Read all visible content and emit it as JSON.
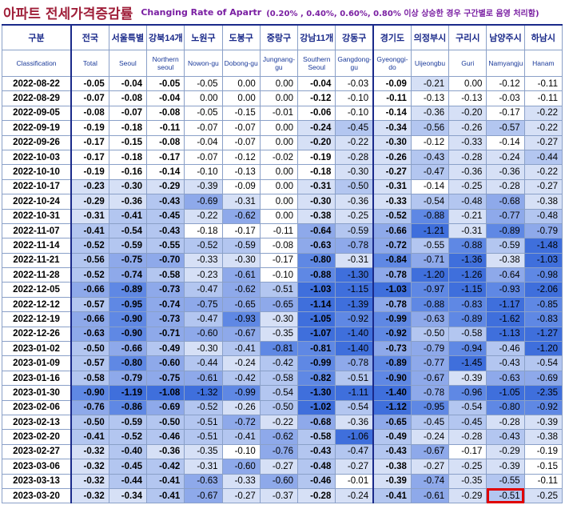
{
  "header": {
    "title": "아파트 전세가격증감률",
    "subtitle": "Changing Rate of Apartr",
    "note": "(0.20% , 0.40%, 0.60%, 0.80% 이상 상승한 경우 구간별로 음영 처리함)"
  },
  "table": {
    "columns": [
      {
        "ko": "구분",
        "en": "Classification"
      },
      {
        "ko": "전국",
        "en": "Total"
      },
      {
        "ko": "서울특별",
        "en": "Seoul"
      },
      {
        "ko": "강북14개",
        "en": "Northern seoul"
      },
      {
        "ko": "노원구",
        "en": "Nowon-gu"
      },
      {
        "ko": "도봉구",
        "en": "Dobong-gu"
      },
      {
        "ko": "중랑구",
        "en": "Jungnang-gu"
      },
      {
        "ko": "강남11개",
        "en": "Southern Seoul"
      },
      {
        "ko": "강동구",
        "en": "Gangdong-gu"
      },
      {
        "ko": "경기도",
        "en": "Gyeonggi-do"
      },
      {
        "ko": "의정부시",
        "en": "Uijeongbu"
      },
      {
        "ko": "구리시",
        "en": "Guri"
      },
      {
        "ko": "남양주시",
        "en": "Namyangju"
      },
      {
        "ko": "하남시",
        "en": "Hanam"
      }
    ],
    "rows": [
      [
        "2022-08-22",
        "-0.05",
        "-0.04",
        "-0.05",
        "-0.05",
        "0.00",
        "0.00",
        "-0.04",
        "-0.03",
        "-0.09",
        "-0.21",
        "0.00",
        "-0.12",
        "-0.11"
      ],
      [
        "2022-08-29",
        "-0.07",
        "-0.08",
        "-0.04",
        "0.00",
        "0.00",
        "0.00",
        "-0.12",
        "-0.10",
        "-0.11",
        "-0.13",
        "-0.13",
        "-0.03",
        "-0.11"
      ],
      [
        "2022-09-05",
        "-0.08",
        "-0.07",
        "-0.08",
        "-0.05",
        "-0.15",
        "-0.01",
        "-0.06",
        "-0.10",
        "-0.14",
        "-0.36",
        "-0.20",
        "-0.17",
        "-0.22"
      ],
      [
        "2022-09-19",
        "-0.19",
        "-0.18",
        "-0.11",
        "-0.07",
        "-0.07",
        "0.00",
        "-0.24",
        "-0.45",
        "-0.34",
        "-0.56",
        "-0.26",
        "-0.57",
        "-0.22"
      ],
      [
        "2022-09-26",
        "-0.17",
        "-0.15",
        "-0.08",
        "-0.04",
        "-0.07",
        "0.00",
        "-0.20",
        "-0.22",
        "-0.30",
        "-0.12",
        "-0.33",
        "-0.14",
        "-0.27"
      ],
      [
        "2022-10-03",
        "-0.17",
        "-0.18",
        "-0.17",
        "-0.07",
        "-0.12",
        "-0.02",
        "-0.19",
        "-0.28",
        "-0.26",
        "-0.43",
        "-0.28",
        "-0.24",
        "-0.44"
      ],
      [
        "2022-10-10",
        "-0.19",
        "-0.16",
        "-0.14",
        "-0.10",
        "-0.13",
        "0.00",
        "-0.18",
        "-0.30",
        "-0.27",
        "-0.47",
        "-0.36",
        "-0.36",
        "-0.22"
      ],
      [
        "2022-10-17",
        "-0.23",
        "-0.30",
        "-0.29",
        "-0.39",
        "-0.09",
        "0.00",
        "-0.31",
        "-0.50",
        "-0.31",
        "-0.14",
        "-0.25",
        "-0.28",
        "-0.27"
      ],
      [
        "2022-10-24",
        "-0.29",
        "-0.36",
        "-0.43",
        "-0.69",
        "-0.31",
        "0.00",
        "-0.30",
        "-0.36",
        "-0.33",
        "-0.54",
        "-0.48",
        "-0.68",
        "-0.38"
      ],
      [
        "2022-10-31",
        "-0.31",
        "-0.41",
        "-0.45",
        "-0.22",
        "-0.62",
        "0.00",
        "-0.38",
        "-0.25",
        "-0.52",
        "-0.88",
        "-0.21",
        "-0.77",
        "-0.48"
      ],
      [
        "2022-11-07",
        "-0.41",
        "-0.54",
        "-0.43",
        "-0.18",
        "-0.17",
        "-0.11",
        "-0.64",
        "-0.59",
        "-0.66",
        "-1.21",
        "-0.31",
        "-0.89",
        "-0.79"
      ],
      [
        "2022-11-14",
        "-0.52",
        "-0.59",
        "-0.55",
        "-0.52",
        "-0.59",
        "-0.08",
        "-0.63",
        "-0.78",
        "-0.72",
        "-0.55",
        "-0.88",
        "-0.59",
        "-1.48"
      ],
      [
        "2022-11-21",
        "-0.56",
        "-0.75",
        "-0.70",
        "-0.33",
        "-0.30",
        "-0.17",
        "-0.80",
        "-0.31",
        "-0.84",
        "-0.71",
        "-1.36",
        "-0.38",
        "-1.03"
      ],
      [
        "2022-11-28",
        "-0.52",
        "-0.74",
        "-0.58",
        "-0.23",
        "-0.61",
        "-0.10",
        "-0.88",
        "-1.30",
        "-0.78",
        "-1.20",
        "-1.26",
        "-0.64",
        "-0.98"
      ],
      [
        "2022-12-05",
        "-0.66",
        "-0.89",
        "-0.73",
        "-0.47",
        "-0.62",
        "-0.51",
        "-1.03",
        "-1.15",
        "-1.03",
        "-0.97",
        "-1.15",
        "-0.93",
        "-2.06"
      ],
      [
        "2022-12-12",
        "-0.57",
        "-0.95",
        "-0.74",
        "-0.75",
        "-0.65",
        "-0.65",
        "-1.14",
        "-1.39",
        "-0.78",
        "-0.88",
        "-0.83",
        "-1.17",
        "-0.85"
      ],
      [
        "2022-12-19",
        "-0.66",
        "-0.90",
        "-0.73",
        "-0.47",
        "-0.93",
        "-0.30",
        "-1.05",
        "-0.92",
        "-0.99",
        "-0.63",
        "-0.89",
        "-1.62",
        "-0.83"
      ],
      [
        "2022-12-26",
        "-0.63",
        "-0.90",
        "-0.71",
        "-0.60",
        "-0.67",
        "-0.35",
        "-1.07",
        "-1.40",
        "-0.92",
        "-0.50",
        "-0.58",
        "-1.13",
        "-1.27"
      ],
      [
        "2023-01-02",
        "-0.50",
        "-0.66",
        "-0.49",
        "-0.30",
        "-0.41",
        "-0.81",
        "-0.81",
        "-1.40",
        "-0.73",
        "-0.79",
        "-0.94",
        "-0.46",
        "-1.20"
      ],
      [
        "2023-01-09",
        "-0.57",
        "-0.80",
        "-0.60",
        "-0.44",
        "-0.24",
        "-0.42",
        "-0.99",
        "-0.78",
        "-0.89",
        "-0.77",
        "-1.45",
        "-0.43",
        "-0.54"
      ],
      [
        "2023-01-16",
        "-0.58",
        "-0.79",
        "-0.75",
        "-0.61",
        "-0.42",
        "-0.58",
        "-0.82",
        "-0.51",
        "-0.90",
        "-0.67",
        "-0.39",
        "-0.63",
        "-0.69"
      ],
      [
        "2023-01-30",
        "-0.90",
        "-1.19",
        "-1.08",
        "-1.32",
        "-0.99",
        "-0.54",
        "-1.30",
        "-1.11",
        "-1.40",
        "-0.78",
        "-0.96",
        "-1.05",
        "-2.35"
      ],
      [
        "2023-02-06",
        "-0.76",
        "-0.86",
        "-0.69",
        "-0.52",
        "-0.26",
        "-0.50",
        "-1.02",
        "-0.54",
        "-1.12",
        "-0.95",
        "-0.54",
        "-0.80",
        "-0.92"
      ],
      [
        "2023-02-13",
        "-0.50",
        "-0.59",
        "-0.50",
        "-0.51",
        "-0.72",
        "-0.22",
        "-0.68",
        "-0.36",
        "-0.65",
        "-0.45",
        "-0.45",
        "-0.28",
        "-0.39"
      ],
      [
        "2023-02-20",
        "-0.41",
        "-0.52",
        "-0.46",
        "-0.51",
        "-0.41",
        "-0.62",
        "-0.58",
        "-1.06",
        "-0.49",
        "-0.24",
        "-0.28",
        "-0.43",
        "-0.38"
      ],
      [
        "2023-02-27",
        "-0.32",
        "-0.40",
        "-0.36",
        "-0.35",
        "-0.10",
        "-0.76",
        "-0.43",
        "-0.47",
        "-0.43",
        "-0.67",
        "-0.17",
        "-0.29",
        "-0.19"
      ],
      [
        "2023-03-06",
        "-0.32",
        "-0.45",
        "-0.42",
        "-0.31",
        "-0.60",
        "-0.27",
        "-0.48",
        "-0.27",
        "-0.38",
        "-0.27",
        "-0.25",
        "-0.39",
        "-0.15"
      ],
      [
        "2023-03-13",
        "-0.32",
        "-0.44",
        "-0.41",
        "-0.63",
        "-0.33",
        "-0.60",
        "-0.46",
        "-0.01",
        "-0.39",
        "-0.74",
        "-0.35",
        "-0.55",
        "-0.11"
      ],
      [
        "2023-03-20",
        "-0.32",
        "-0.34",
        "-0.41",
        "-0.67",
        "-0.27",
        "-0.37",
        "-0.28",
        "-0.24",
        "-0.41",
        "-0.61",
        "-0.29",
        "-0.51",
        "-0.25"
      ]
    ]
  }
}
